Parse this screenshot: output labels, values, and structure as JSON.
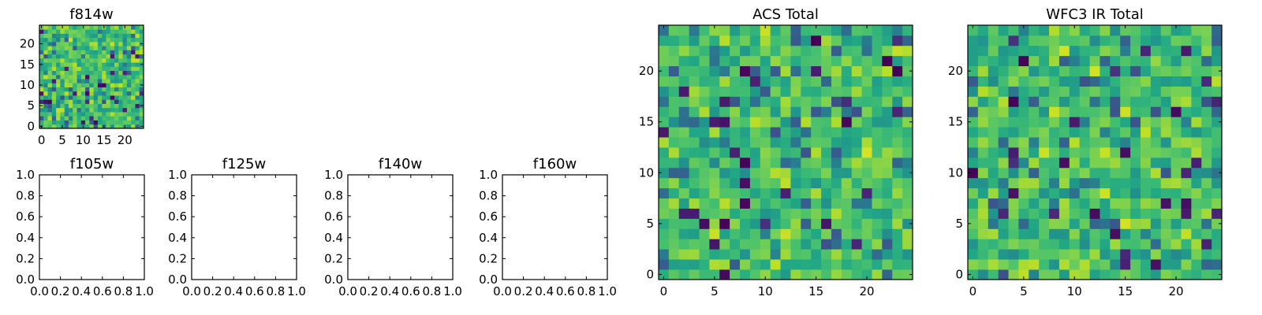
{
  "chart_data": [
    {
      "id": "f814w",
      "type": "heatmap",
      "title": "f814w",
      "xticks": [
        "0",
        "5",
        "10",
        "15",
        "20"
      ],
      "yticks": [
        "0",
        "5",
        "10",
        "15",
        "20"
      ],
      "xlim": [
        -0.5,
        24.5
      ],
      "ylim": [
        -0.5,
        24.5
      ],
      "grid_size": 25,
      "colormap": "viridis",
      "seed": 814
    },
    {
      "id": "f105w",
      "type": "heatmap",
      "title": "f105w",
      "empty": true,
      "xticks": [
        "0.0",
        "0.2",
        "0.4",
        "0.6",
        "0.8",
        "1.0"
      ],
      "yticks": [
        "0.0",
        "0.2",
        "0.4",
        "0.6",
        "0.8",
        "1.0"
      ],
      "xlim": [
        0,
        1
      ],
      "ylim": [
        0,
        1
      ]
    },
    {
      "id": "f125w",
      "type": "heatmap",
      "title": "f125w",
      "empty": true,
      "xticks": [
        "0.0",
        "0.2",
        "0.4",
        "0.6",
        "0.8",
        "1.0"
      ],
      "yticks": [
        "0.0",
        "0.2",
        "0.4",
        "0.6",
        "0.8",
        "1.0"
      ],
      "xlim": [
        0,
        1
      ],
      "ylim": [
        0,
        1
      ]
    },
    {
      "id": "f140w",
      "type": "heatmap",
      "title": "f140w",
      "empty": true,
      "xticks": [
        "0.0",
        "0.2",
        "0.4",
        "0.6",
        "0.8",
        "1.0"
      ],
      "yticks": [
        "0.0",
        "0.2",
        "0.4",
        "0.6",
        "0.8",
        "1.0"
      ],
      "xlim": [
        0,
        1
      ],
      "ylim": [
        0,
        1
      ]
    },
    {
      "id": "f160w",
      "type": "heatmap",
      "title": "f160w",
      "empty": true,
      "xticks": [
        "0.0",
        "0.2",
        "0.4",
        "0.6",
        "0.8",
        "1.0"
      ],
      "yticks": [
        "0.0",
        "0.2",
        "0.4",
        "0.6",
        "0.8",
        "1.0"
      ],
      "xlim": [
        0,
        1
      ],
      "ylim": [
        0,
        1
      ]
    },
    {
      "id": "acs-total",
      "type": "heatmap",
      "title": "ACS Total",
      "xticks": [
        "0",
        "5",
        "10",
        "15",
        "20"
      ],
      "yticks": [
        "0",
        "5",
        "10",
        "15",
        "20"
      ],
      "xlim": [
        -0.5,
        24.5
      ],
      "ylim": [
        -0.5,
        24.5
      ],
      "grid_size": 25,
      "colormap": "viridis",
      "seed": 2024
    },
    {
      "id": "wfc3-ir-total",
      "type": "heatmap",
      "title": "WFC3 IR Total",
      "xticks": [
        "0",
        "5",
        "10",
        "15",
        "20"
      ],
      "yticks": [
        "0",
        "5",
        "10",
        "15",
        "20"
      ],
      "xlim": [
        -0.5,
        24.5
      ],
      "ylim": [
        -0.5,
        24.5
      ],
      "grid_size": 25,
      "colormap": "viridis",
      "seed": 3110
    }
  ]
}
